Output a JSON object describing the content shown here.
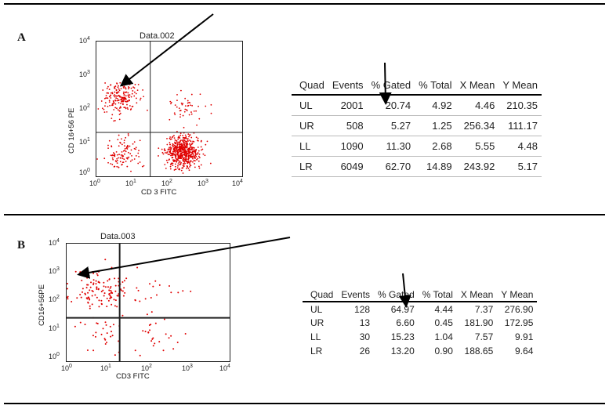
{
  "panels": [
    {
      "letter": "A",
      "plot_title": "Data.002",
      "y_axis_label": "CD 16+56 PE",
      "x_axis_label": "CD 3 FITC",
      "ticks": [
        "10",
        "10",
        "10",
        "10",
        "10"
      ],
      "tick_exps": [
        "0",
        "1",
        "2",
        "3",
        "4"
      ],
      "table": {
        "headers": [
          "Quad",
          "Events",
          "% Gated",
          "% Total",
          "X Mean",
          "Y Mean"
        ],
        "rows": [
          [
            "UL",
            "2001",
            "20.74",
            "4.92",
            "4.46",
            "210.35"
          ],
          [
            "UR",
            "508",
            "5.27",
            "1.25",
            "256.34",
            "111.17"
          ],
          [
            "LL",
            "1090",
            "11.30",
            "2.68",
            "5.55",
            "4.48"
          ],
          [
            "LR",
            "6049",
            "62.70",
            "14.89",
            "243.92",
            "5.17"
          ]
        ]
      }
    },
    {
      "letter": "B",
      "plot_title": "Data.003",
      "y_axis_label": "CD16+56PE",
      "x_axis_label": "CD3 FITC",
      "ticks": [
        "10",
        "10",
        "10",
        "10",
        "10"
      ],
      "tick_exps": [
        "0",
        "1",
        "2",
        "3",
        "4"
      ],
      "table": {
        "headers": [
          "Quad",
          "Events",
          "% Gated",
          "% Total",
          "X Mean",
          "Y Mean"
        ],
        "rows": [
          [
            "UL",
            "128",
            "64.97",
            "4.44",
            "7.37",
            "276.90"
          ],
          [
            "UR",
            "13",
            "6.60",
            "0.45",
            "181.90",
            "172.95"
          ],
          [
            "LL",
            "30",
            "15.23",
            "1.04",
            "7.57",
            "9.91"
          ],
          [
            "LR",
            "26",
            "13.20",
            "0.90",
            "188.65",
            "9.64"
          ]
        ]
      }
    }
  ],
  "chart_data": [
    {
      "type": "scatter",
      "title": "Data.002",
      "xlabel": "CD 3 FITC",
      "ylabel": "CD 16+56 PE",
      "xscale": "log",
      "yscale": "log",
      "xlim": [
        1,
        10000
      ],
      "ylim": [
        1,
        10000
      ],
      "quadrant_gate": {
        "x": 30,
        "y": 20
      },
      "point_color": "#e00000",
      "clusters": [
        {
          "quad": "UL",
          "events": 2001,
          "x_mean": 4.46,
          "y_mean": 210.35
        },
        {
          "quad": "UR",
          "events": 508,
          "x_mean": 256.34,
          "y_mean": 111.17
        },
        {
          "quad": "LL",
          "events": 1090,
          "x_mean": 5.55,
          "y_mean": 4.48
        },
        {
          "quad": "LR",
          "events": 6049,
          "x_mean": 243.92,
          "y_mean": 5.17
        }
      ]
    },
    {
      "type": "scatter",
      "title": "Data.003",
      "xlabel": "CD3 FITC",
      "ylabel": "CD16+56PE",
      "xscale": "log",
      "yscale": "log",
      "xlim": [
        1,
        10000
      ],
      "ylim": [
        1,
        10000
      ],
      "quadrant_gate": {
        "x": 20,
        "y": 30
      },
      "point_color": "#e00000",
      "clusters": [
        {
          "quad": "UL",
          "events": 128,
          "x_mean": 7.37,
          "y_mean": 276.9
        },
        {
          "quad": "UR",
          "events": 13,
          "x_mean": 181.9,
          "y_mean": 172.95
        },
        {
          "quad": "LL",
          "events": 30,
          "x_mean": 7.57,
          "y_mean": 9.91
        },
        {
          "quad": "LR",
          "events": 26,
          "x_mean": 188.65,
          "y_mean": 9.64
        }
      ]
    }
  ]
}
